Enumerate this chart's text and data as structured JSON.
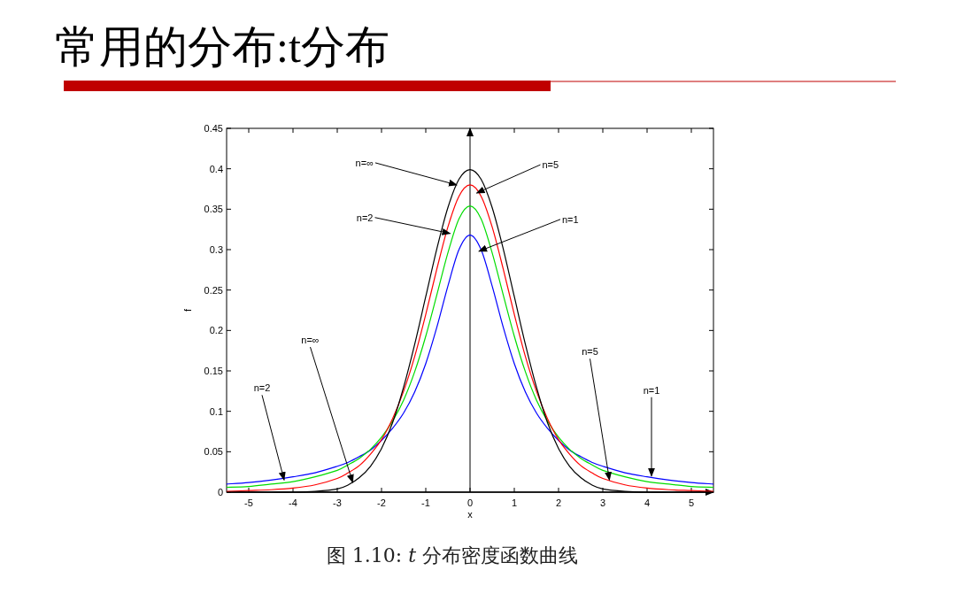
{
  "chart_data": {
    "type": "line",
    "title": "常用的分布:t分布",
    "xlabel": "x",
    "ylabel": "f",
    "x": [
      -5.5,
      -5,
      -4.5,
      -4,
      -3.5,
      -3,
      -2.75,
      -2.5,
      -2.25,
      -2,
      -1.75,
      -1.5,
      -1.25,
      -1,
      -0.75,
      -0.5,
      -0.25,
      0,
      0.25,
      0.5,
      0.75,
      1,
      1.25,
      1.5,
      1.75,
      2,
      2.25,
      2.5,
      2.75,
      3,
      3.5,
      4,
      4.5,
      5,
      5.5
    ],
    "series": [
      {
        "color": "#0000ff",
        "values": [
          0.01,
          0.012,
          0.015,
          0.019,
          0.024,
          0.032,
          0.037,
          0.044,
          0.052,
          0.064,
          0.079,
          0.098,
          0.124,
          0.159,
          0.204,
          0.255,
          0.3,
          0.318,
          0.3,
          0.255,
          0.204,
          0.159,
          0.124,
          0.098,
          0.079,
          0.064,
          0.052,
          0.044,
          0.037,
          0.032,
          0.024,
          0.019,
          0.015,
          0.012,
          0.01
        ]
      },
      {
        "color": "#00dd00",
        "values": [
          0.006,
          0.007,
          0.01,
          0.013,
          0.019,
          0.027,
          0.034,
          0.042,
          0.053,
          0.068,
          0.088,
          0.114,
          0.149,
          0.193,
          0.244,
          0.296,
          0.338,
          0.354,
          0.338,
          0.296,
          0.244,
          0.193,
          0.149,
          0.114,
          0.088,
          0.068,
          0.053,
          0.042,
          0.034,
          0.027,
          0.019,
          0.013,
          0.01,
          0.007,
          0.006
        ]
      },
      {
        "color": "#ff0000",
        "values": [
          0.001,
          0.002,
          0.003,
          0.005,
          0.009,
          0.017,
          0.024,
          0.033,
          0.047,
          0.065,
          0.091,
          0.125,
          0.168,
          0.22,
          0.276,
          0.328,
          0.366,
          0.38,
          0.366,
          0.328,
          0.276,
          0.22,
          0.168,
          0.125,
          0.091,
          0.065,
          0.047,
          0.033,
          0.024,
          0.017,
          0.009,
          0.005,
          0.003,
          0.002,
          0.001
        ]
      },
      {
        "color": "#000000",
        "values": [
          0,
          0,
          0,
          0,
          0.001,
          0.004,
          0.009,
          0.018,
          0.032,
          0.054,
          0.086,
          0.13,
          0.183,
          0.242,
          0.301,
          0.352,
          0.387,
          0.399,
          0.387,
          0.352,
          0.301,
          0.242,
          0.183,
          0.13,
          0.086,
          0.054,
          0.032,
          0.018,
          0.009,
          0.004,
          0.001,
          0,
          0,
          0,
          0
        ]
      }
    ],
    "xlim": [
      -5.5,
      5.5
    ],
    "xticks": [
      -5,
      -4,
      -3,
      -2,
      -1,
      0,
      1,
      2,
      3,
      4,
      5
    ],
    "ylim": [
      0,
      0.45
    ],
    "yticks": [
      0,
      0.05,
      0.1,
      0.15,
      0.2,
      0.25,
      0.3,
      0.35,
      0.4,
      0.45
    ],
    "grid": false,
    "ref_lines": [
      {
        "axis": "x",
        "value": 0
      }
    ],
    "annotations": [
      {
        "text": "n=∞",
        "x": -0.3,
        "y": 0.38
      },
      {
        "text": "n=5",
        "x": 0.15,
        "y": 0.37
      },
      {
        "text": "n=2",
        "x": -0.45,
        "y": 0.32
      },
      {
        "text": "n=1",
        "x": 0.2,
        "y": 0.298
      },
      {
        "text": "n=∞",
        "x": -2.65,
        "y": 0.012
      },
      {
        "text": "n=2",
        "x": -4.2,
        "y": 0.015
      },
      {
        "text": "n=5",
        "x": 3.15,
        "y": 0.015
      },
      {
        "text": "n=1",
        "x": 4.1,
        "y": 0.02
      },
      "图 1.10: *t* 分布密度函数曲线"
    ]
  }
}
